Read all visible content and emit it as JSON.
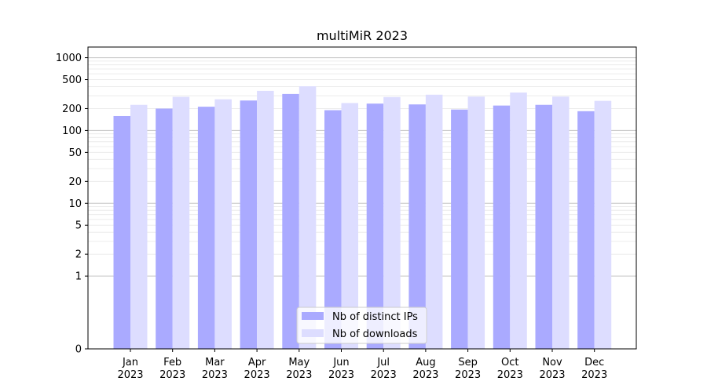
{
  "chart_data": {
    "type": "bar",
    "title": "multiMiR 2023",
    "xlabel": "",
    "ylabel": "",
    "y_scale": "symlog",
    "ylim": [
      0,
      1400
    ],
    "y_ticks": [
      0,
      1,
      2,
      5,
      10,
      20,
      50,
      100,
      200,
      500,
      1000
    ],
    "y_tick_labels": [
      "0",
      "1",
      "2",
      "5",
      "10",
      "20",
      "50",
      "100",
      "200",
      "500",
      "1000"
    ],
    "categories": [
      "Jan\n2023",
      "Feb\n2023",
      "Mar\n2023",
      "Apr\n2023",
      "May\n2023",
      "Jun\n2023",
      "Jul\n2023",
      "Aug\n2023",
      "Sep\n2023",
      "Oct\n2023",
      "Nov\n2023",
      "Dec\n2023"
    ],
    "series": [
      {
        "name": "Nb of distinct IPs",
        "color": "#aaaaff",
        "values": [
          158,
          200,
          212,
          258,
          317,
          190,
          234,
          228,
          194,
          220,
          225,
          184
        ]
      },
      {
        "name": "Nb of downloads",
        "color": "#ddddff",
        "values": [
          225,
          290,
          268,
          350,
          405,
          238,
          288,
          310,
          292,
          332,
          292,
          255
        ]
      }
    ],
    "grid": true,
    "legend_position": "bottom-center"
  }
}
